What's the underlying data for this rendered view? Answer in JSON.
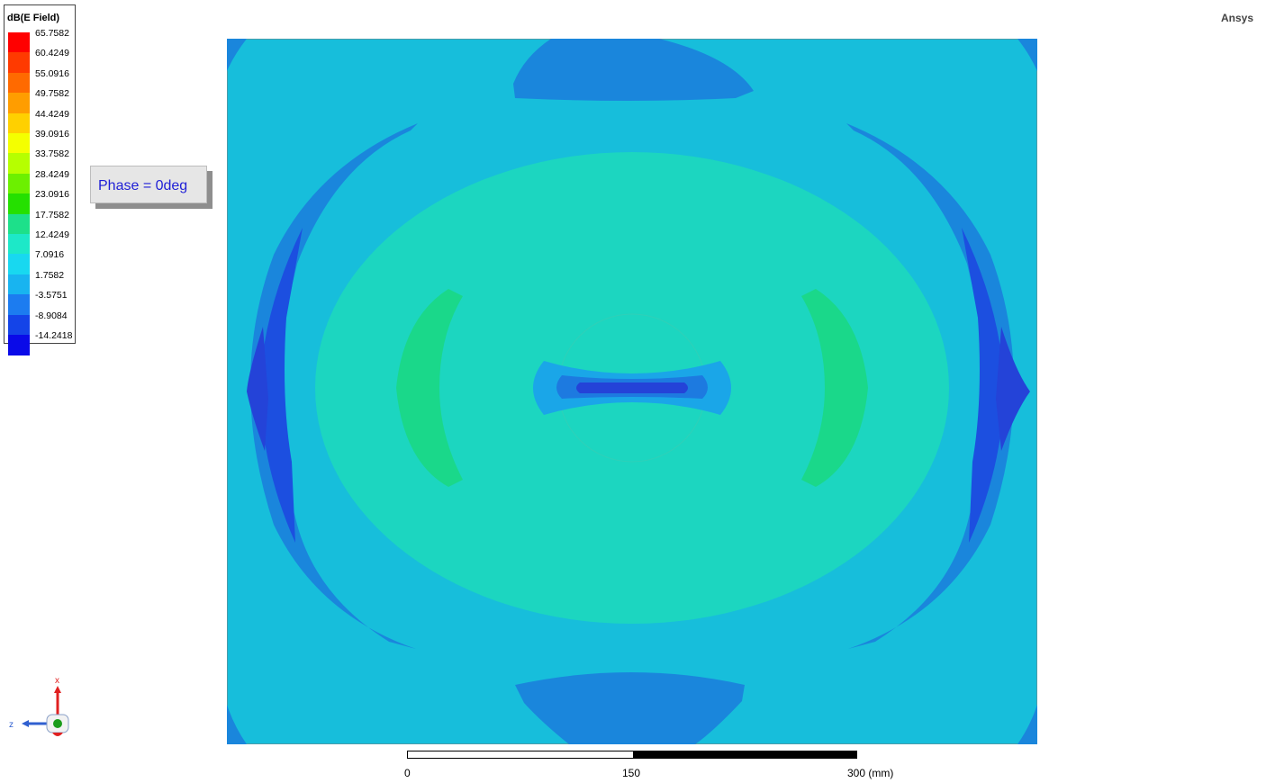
{
  "app": {
    "brand": "Ansys"
  },
  "legend": {
    "title": "dB(E Field)",
    "entries": [
      {
        "label": "65.7582",
        "color": "#ff0000"
      },
      {
        "label": "60.4249",
        "color": "#ff3a00"
      },
      {
        "label": "55.0916",
        "color": "#ff6a00"
      },
      {
        "label": "49.7582",
        "color": "#ff9d00"
      },
      {
        "label": "44.4249",
        "color": "#ffd000"
      },
      {
        "label": "39.0916",
        "color": "#f4ff00"
      },
      {
        "label": "33.7582",
        "color": "#b6ff00"
      },
      {
        "label": "28.4249",
        "color": "#6cf000"
      },
      {
        "label": "23.0916",
        "color": "#25e000"
      },
      {
        "label": "17.7582",
        "color": "#1de08a"
      },
      {
        "label": "12.4249",
        "color": "#1de8c8"
      },
      {
        "label": "7.0916",
        "color": "#18d8f0"
      },
      {
        "label": "1.7582",
        "color": "#18b4f0"
      },
      {
        "label": "-3.5751",
        "color": "#1c7cf0"
      },
      {
        "label": "-8.9084",
        "color": "#1444e8"
      },
      {
        "label": "-14.2418",
        "color": "#0a0ae8"
      }
    ]
  },
  "overlay": {
    "phase_text": "Phase = 0deg"
  },
  "scale": {
    "tick_0": "0",
    "tick_1": "150",
    "tick_2": "300 (mm)"
  },
  "triad": {
    "x_label": "x",
    "z_label": "z"
  },
  "plot_colors": {
    "background": "#17bedb",
    "band_dark": "#1a86dc",
    "band_darker": "#1c4fe0",
    "center": "#1cd6c0",
    "lobe": "#1ad88a",
    "core_outer": "#1aa6e8",
    "core_mid": "#1d7ae0",
    "core_inner": "#2443d8"
  }
}
